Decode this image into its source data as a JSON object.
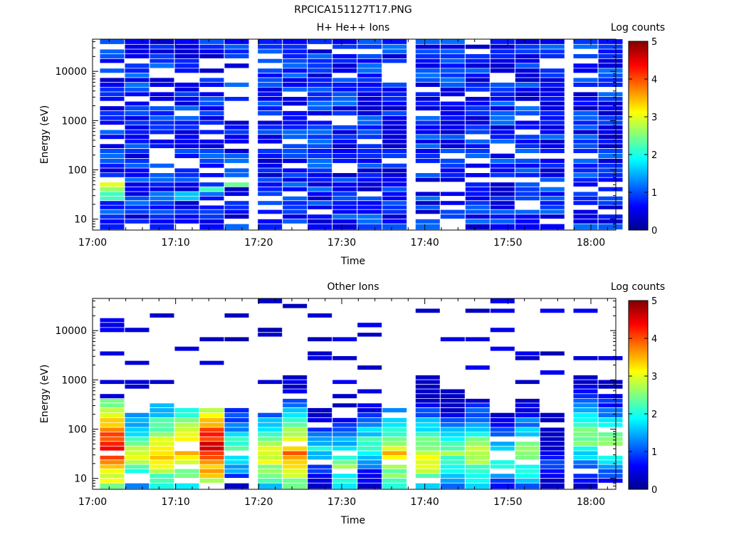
{
  "figure_title": "RPCICA151127T17.PNG",
  "colormap": [
    "#00008f",
    "#0000ff",
    "#0080ff",
    "#00ffff",
    "#80ff80",
    "#ffff00",
    "#ff8000",
    "#ff0000",
    "#800000"
  ],
  "chart_data": [
    {
      "type": "heatmap",
      "title": "H+ He++ Ions",
      "xlabel": "Time",
      "ylabel": "Energy (eV)",
      "yscale": "log",
      "ylim": [
        6,
        45000
      ],
      "xlim": [
        "17:00",
        "18:03"
      ],
      "xticks": [
        "17:00",
        "17:10",
        "17:20",
        "17:30",
        "17:40",
        "17:50",
        "18:00"
      ],
      "yticks": [
        "10",
        "100",
        "1000",
        "10000"
      ],
      "colorbar": {
        "label": "Log counts",
        "range": [
          0,
          5
        ],
        "ticks": [
          "0",
          "1",
          "2",
          "3",
          "4",
          "5"
        ]
      },
      "time_columns": [
        "17:02",
        "17:05",
        "17:08",
        "17:11",
        "17:14",
        "17:17",
        "17:21",
        "17:24",
        "17:27",
        "17:30",
        "17:33",
        "17:36",
        "17:40",
        "17:43",
        "17:46",
        "17:49",
        "17:52",
        "17:55",
        "17:59",
        "18:02"
      ],
      "energy_bins": [
        7,
        9,
        11,
        14,
        17,
        21,
        26,
        32,
        40,
        50,
        62,
        77,
        96,
        120,
        150,
        190,
        240,
        300,
        370,
        460,
        580,
        720,
        900,
        1100,
        1400,
        1750,
        2200,
        2700,
        3400,
        4200,
        5300,
        6600,
        8200,
        10000,
        13000,
        16000,
        20000,
        25000,
        31000,
        39000
      ],
      "low_energy_log_counts": [
        {
          "time": "17:02",
          "energy_eV": 30,
          "value": 2.2
        },
        {
          "time": "17:02",
          "energy_eV": 40,
          "value": 2.6
        },
        {
          "time": "17:02",
          "energy_eV": 50,
          "value": 3.0
        },
        {
          "time": "17:08",
          "energy_eV": 30,
          "value": 1.2
        },
        {
          "time": "17:11",
          "energy_eV": 30,
          "value": 1.6
        },
        {
          "time": "17:14",
          "energy_eV": 40,
          "value": 2.2
        },
        {
          "time": "17:17",
          "energy_eV": 50,
          "value": 2.4
        },
        {
          "time": "17:24",
          "energy_eV": 26,
          "value": 1.1
        }
      ],
      "background_log_counts": "0.3-1.2 (sparse, uniform across all energies)"
    },
    {
      "type": "heatmap",
      "title": "Other Ions",
      "xlabel": "Time",
      "ylabel": "Energy (eV)",
      "yscale": "log",
      "ylim": [
        6,
        45000
      ],
      "xlim": [
        "17:00",
        "18:03"
      ],
      "xticks": [
        "17:00",
        "17:10",
        "17:20",
        "17:30",
        "17:40",
        "17:50",
        "18:00"
      ],
      "yticks": [
        "10",
        "100",
        "1000",
        "10000"
      ],
      "colorbar": {
        "label": "Log counts",
        "range": [
          0,
          5
        ],
        "ticks": [
          "0",
          "1",
          "2",
          "3",
          "4",
          "5"
        ]
      },
      "time_columns": [
        "17:02",
        "17:05",
        "17:08",
        "17:11",
        "17:14",
        "17:17",
        "17:21",
        "17:24",
        "17:27",
        "17:30",
        "17:33",
        "17:36",
        "17:40",
        "17:43",
        "17:46",
        "17:49",
        "17:52",
        "17:55",
        "17:59",
        "18:02"
      ],
      "peak_log_counts_per_column": [
        {
          "time": "17:02",
          "peak_energy_eV": 45,
          "peak": 4.5,
          "upper_energy_eV": 400
        },
        {
          "time": "17:05",
          "peak_energy_eV": 30,
          "peak": 3.0,
          "upper_energy_eV": 200
        },
        {
          "time": "17:08",
          "peak_energy_eV": 35,
          "peak": 3.6,
          "upper_energy_eV": 350
        },
        {
          "time": "17:11",
          "peak_energy_eV": 40,
          "peak": 3.8,
          "upper_energy_eV": 300
        },
        {
          "time": "17:14",
          "peak_energy_eV": 45,
          "peak": 4.6,
          "upper_energy_eV": 270
        },
        {
          "time": "17:17",
          "peak_energy_eV": 40,
          "peak": 2.4,
          "upper_energy_eV": 260
        },
        {
          "time": "17:21",
          "peak_energy_eV": 30,
          "peak": 3.2,
          "upper_energy_eV": 200
        },
        {
          "time": "17:24",
          "peak_energy_eV": 30,
          "peak": 3.8,
          "upper_energy_eV": 1300
        },
        {
          "time": "17:27",
          "peak_energy_eV": 40,
          "peak": 2.0,
          "upper_energy_eV": 250
        },
        {
          "time": "17:30",
          "peak_energy_eV": 20,
          "peak": 2.6,
          "upper_energy_eV": 200
        },
        {
          "time": "17:33",
          "peak_energy_eV": 50,
          "peak": 2.2,
          "upper_energy_eV": 350
        },
        {
          "time": "17:36",
          "peak_energy_eV": 30,
          "peak": 3.4,
          "upper_energy_eV": 300
        },
        {
          "time": "17:40",
          "peak_energy_eV": 25,
          "peak": 3.2,
          "upper_energy_eV": 1100
        },
        {
          "time": "17:43",
          "peak_energy_eV": 30,
          "peak": 2.6,
          "upper_energy_eV": 600
        },
        {
          "time": "17:46",
          "peak_energy_eV": 30,
          "peak": 3.0,
          "upper_energy_eV": 450
        },
        {
          "time": "17:49",
          "peak_energy_eV": 25,
          "peak": 2.2,
          "upper_energy_eV": 250
        },
        {
          "time": "17:52",
          "peak_energy_eV": 30,
          "peak": 2.8,
          "upper_energy_eV": 500
        },
        {
          "time": "17:55",
          "peak_energy_eV": 20,
          "peak": 1.2,
          "upper_energy_eV": 200
        },
        {
          "time": "17:59",
          "peak_energy_eV": 80,
          "peak": 2.8,
          "upper_energy_eV": 1200
        },
        {
          "time": "18:02",
          "peak_energy_eV": 60,
          "peak": 2.6,
          "upper_energy_eV": 1000
        }
      ],
      "high_energy_sparse_log_counts": "0.2-0.6 (isolated single-bin detections up to ~40000 eV)"
    }
  ]
}
